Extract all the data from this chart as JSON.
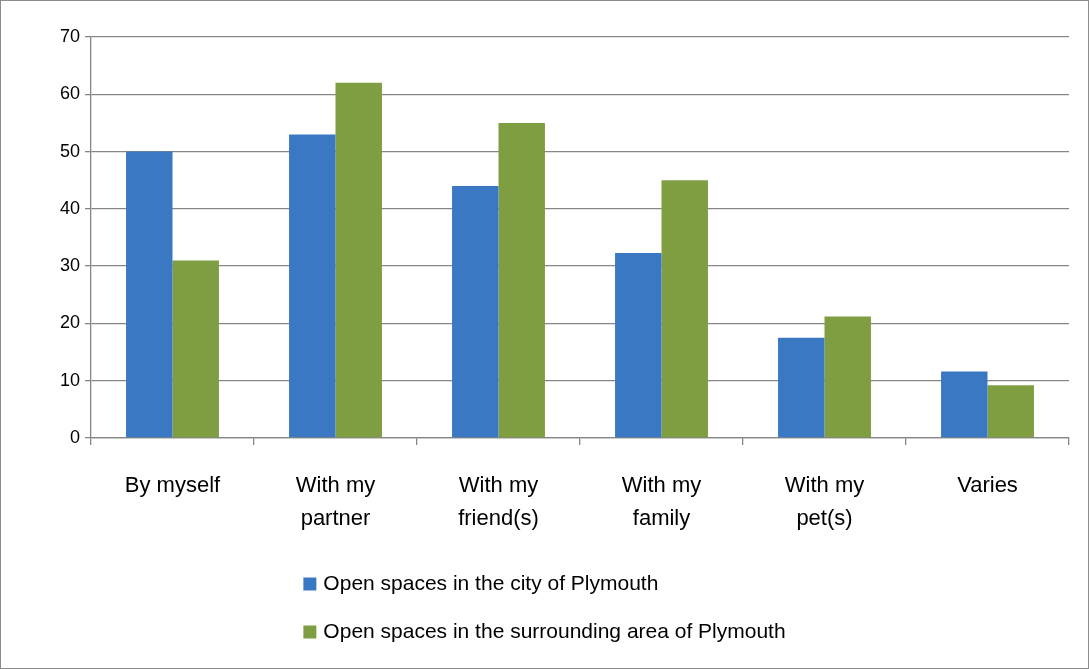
{
  "chart_data": {
    "type": "bar",
    "categories": [
      "By myself",
      "With my partner",
      "With my friend(s)",
      "With my family",
      "With my pet(s)",
      "Varies"
    ],
    "series": [
      {
        "name": "Open spaces in the city of Plymouth",
        "color": "#3b78c4",
        "values": [
          50,
          53,
          44,
          32.3,
          17.5,
          11.6
        ]
      },
      {
        "name": "Open spaces in the surrounding area of Plymouth",
        "color": "#7f9e41",
        "values": [
          31,
          62,
          55,
          45,
          21.2,
          9.2
        ]
      }
    ],
    "ylim": [
      0,
      70
    ],
    "yticks": [
      0,
      10,
      20,
      30,
      40,
      50,
      60,
      70
    ],
    "grid": "y",
    "legend": "bottom"
  }
}
